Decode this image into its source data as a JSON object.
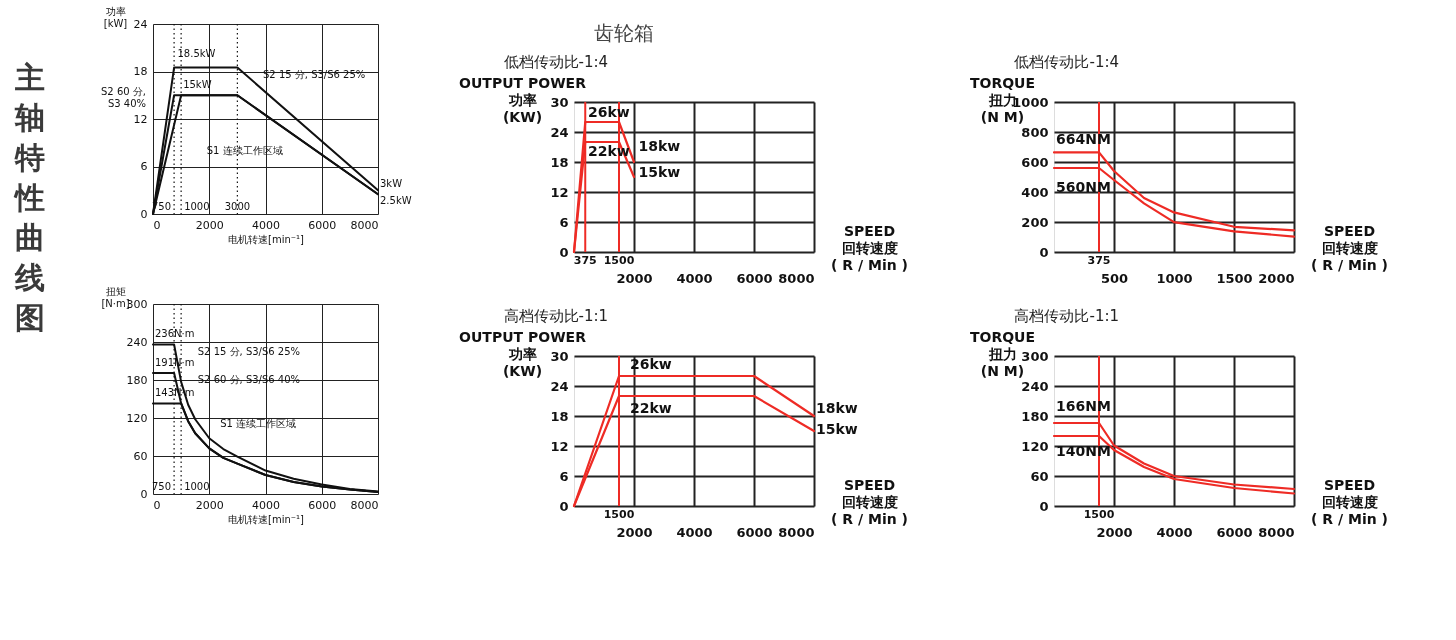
{
  "chart_data": [
    {
      "type": "other",
      "title": "主轴特性曲线图"
    },
    {
      "type": "line",
      "ylabel": "功率\n[kW]",
      "xlabel": "电机转速[min⁻¹]",
      "xlim": [
        0,
        8000
      ],
      "ylim": [
        0,
        24
      ],
      "xticks": [
        0,
        2000,
        4000,
        6000,
        8000
      ],
      "yticks": [
        0,
        6,
        12,
        18,
        24
      ],
      "grid": true,
      "series": [
        {
          "color": "#111111",
          "x": [
            0,
            750,
            3000,
            8000
          ],
          "values": [
            0,
            18.5,
            18.5,
            3
          ]
        },
        {
          "color": "#111111",
          "x": [
            0,
            750,
            3000,
            8000
          ],
          "values": [
            0,
            15,
            15,
            2.5
          ]
        },
        {
          "color": "#111111",
          "x": [
            0,
            1000,
            3000,
            8000
          ],
          "values": [
            0,
            15,
            15,
            2.5
          ]
        }
      ],
      "ref_lines": [
        {
          "axis": "x",
          "value": 750,
          "label": "750",
          "color": "#111111",
          "line_style": "dotted"
        },
        {
          "axis": "x",
          "value": 1000,
          "label": "1000",
          "color": "#111111",
          "line_style": "dotted"
        },
        {
          "axis": "x",
          "value": 3000,
          "label": "3000",
          "color": "#111111",
          "line_style": "dotted"
        }
      ],
      "annotations": [
        "18.5kW",
        "15kW",
        "S2 60 分,\nS3 40%",
        "S2 15 分, S3/S6 25%",
        "S1 连续工作区域",
        "3kW",
        "2.5kW"
      ]
    },
    {
      "type": "line",
      "ylabel": "扭矩\n[N·m]",
      "xlabel": "电机转速[min⁻¹]",
      "xlim": [
        0,
        8000
      ],
      "ylim": [
        0,
        300
      ],
      "xticks": [
        0,
        2000,
        4000,
        6000,
        8000
      ],
      "yticks": [
        0,
        60,
        120,
        180,
        240,
        300
      ],
      "grid": true,
      "series": [
        {
          "color": "#111111",
          "x": [
            0,
            750,
            1000,
            1250,
            1500,
            2000,
            2500,
            3000,
            4000,
            5000,
            6000,
            7000,
            8000
          ],
          "values": [
            236,
            236,
            177,
            141,
            118,
            88,
            71,
            59,
            37,
            24,
            15,
            8,
            4
          ]
        },
        {
          "color": "#111111",
          "x": [
            0,
            750,
            1000,
            1250,
            1500,
            2000,
            2500,
            3000,
            4000,
            5000,
            6000,
            7000,
            8000
          ],
          "values": [
            191,
            191,
            143,
            115,
            96,
            72,
            57,
            48,
            30,
            19,
            12,
            7,
            3
          ]
        },
        {
          "color": "#111111",
          "x": [
            0,
            1000,
            1250,
            1500,
            2000,
            2500,
            3000,
            4000,
            5000,
            6000,
            7000,
            8000
          ],
          "values": [
            143,
            143,
            115,
            96,
            72,
            57,
            48,
            30,
            19,
            12,
            7,
            3
          ]
        }
      ],
      "ref_lines": [
        {
          "axis": "x",
          "value": 750,
          "label": "750",
          "color": "#111111",
          "line_style": "dotted"
        },
        {
          "axis": "x",
          "value": 1000,
          "label": "1000",
          "color": "#111111",
          "line_style": "dotted"
        }
      ],
      "annotations": [
        "236N·m",
        "191N·m",
        "143N·m",
        "S2 15 分, S3/S6 25%",
        "S2 60 分, S3/S6 40%",
        "S1 连续工作区域"
      ]
    },
    {
      "type": "other",
      "title": "齿轮箱"
    },
    {
      "type": "line",
      "title": "低档传动比-1:4",
      "ylabel": "OUTPUT POWER\n功率\n(KW)",
      "xlabel": "SPEED\n回转速度\n( R / Min )",
      "xlim": [
        0,
        8000
      ],
      "ylim": [
        0,
        30
      ],
      "xticks": [
        2000,
        4000,
        6000,
        8000
      ],
      "yticks": [
        0,
        6,
        12,
        18,
        24,
        30
      ],
      "grid": true,
      "series": [
        {
          "color": "#ee2b25",
          "x": [
            0,
            375,
            1500,
            2000
          ],
          "values": [
            0,
            26,
            26,
            18
          ]
        },
        {
          "color": "#ee2b25",
          "x": [
            0,
            375,
            1500,
            2000
          ],
          "values": [
            0,
            22,
            22,
            15
          ]
        }
      ],
      "ref_lines": [
        {
          "axis": "x",
          "value": 375,
          "label": "375",
          "color": "#ee2b25",
          "line_style": "solid"
        },
        {
          "axis": "x",
          "value": 1500,
          "label": "1500",
          "color": "#ee2b25",
          "line_style": "solid"
        }
      ],
      "annotations": [
        "26kw",
        "22kw",
        "18kw",
        "15kw"
      ]
    },
    {
      "type": "line",
      "title": "高档传动比-1:1",
      "ylabel": "OUTPUT POWER\n功率\n(KW)",
      "xlabel": "SPEED\n回转速度\n( R / Min )",
      "xlim": [
        0,
        8000
      ],
      "ylim": [
        0,
        30
      ],
      "xticks": [
        2000,
        4000,
        6000,
        8000
      ],
      "yticks": [
        0,
        6,
        12,
        18,
        24,
        30
      ],
      "grid": true,
      "series": [
        {
          "color": "#ee2b25",
          "x": [
            0,
            1500,
            6000,
            8000
          ],
          "values": [
            0,
            26,
            26,
            18
          ]
        },
        {
          "color": "#ee2b25",
          "x": [
            0,
            1500,
            6000,
            8000
          ],
          "values": [
            0,
            22,
            22,
            15
          ]
        }
      ],
      "ref_lines": [
        {
          "axis": "x",
          "value": 1500,
          "label": "1500",
          "color": "#ee2b25",
          "line_style": "solid"
        }
      ],
      "annotations": [
        "26kw",
        "22kw",
        "18kw",
        "15kw"
      ]
    },
    {
      "type": "line",
      "title": "低档传动比-1:4",
      "ylabel": "TORQUE\n扭力\n(N   M)",
      "xlabel": "SPEED\n回转速度\n( R / Min )",
      "xlim": [
        0,
        2000
      ],
      "ylim": [
        0,
        1000
      ],
      "xticks": [
        500,
        1000,
        1500,
        2000
      ],
      "yticks": [
        0,
        200,
        400,
        600,
        800,
        1000
      ],
      "grid": true,
      "series": [
        {
          "color": "#ee2b25",
          "x": [
            0,
            375,
            500,
            750,
            1000,
            1500,
            2000
          ],
          "values": [
            664,
            664,
            540,
            360,
            264,
            168,
            144
          ]
        },
        {
          "color": "#ee2b25",
          "x": [
            0,
            375,
            500,
            750,
            1000,
            1500,
            2000
          ],
          "values": [
            560,
            560,
            480,
            324,
            199,
            137,
            103
          ]
        }
      ],
      "ref_lines": [
        {
          "axis": "x",
          "value": 375,
          "label": "375",
          "color": "#ee2b25",
          "line_style": "solid"
        }
      ],
      "annotations": [
        "664NM",
        "560NM"
      ]
    },
    {
      "type": "line",
      "title": "高档传动比-1:1",
      "ylabel": "TORQUE\n扭力\n(N   M)",
      "xlabel": "SPEED\n回转速度\n( R / Min )",
      "xlim": [
        0,
        8000
      ],
      "ylim": [
        0,
        300
      ],
      "xticks": [
        2000,
        4000,
        6000,
        8000
      ],
      "yticks": [
        0,
        60,
        120,
        180,
        240,
        300
      ],
      "grid": true,
      "series": [
        {
          "color": "#ee2b25",
          "x": [
            0,
            1500,
            2000,
            3000,
            4000,
            6000,
            8000
          ],
          "values": [
            166,
            166,
            121,
            85,
            60,
            43,
            34
          ]
        },
        {
          "color": "#ee2b25",
          "x": [
            0,
            1500,
            2000,
            3000,
            4000,
            6000,
            8000
          ],
          "values": [
            140,
            140,
            112,
            78,
            54,
            36,
            25
          ]
        }
      ],
      "ref_lines": [
        {
          "axis": "x",
          "value": 1500,
          "label": "1500",
          "color": "#ee2b25",
          "line_style": "solid"
        }
      ],
      "annotations": [
        "166NM",
        "140NM"
      ]
    }
  ]
}
